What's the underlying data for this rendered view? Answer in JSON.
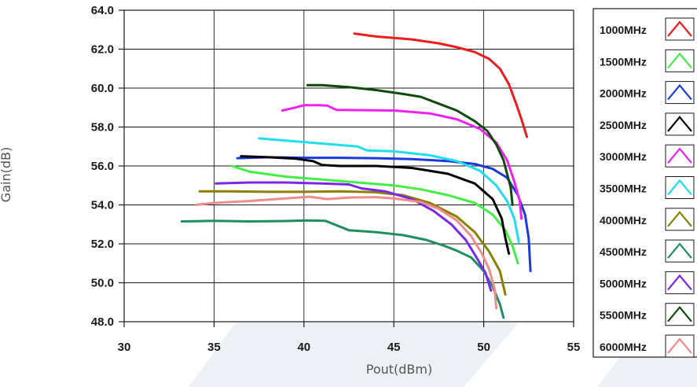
{
  "chart_data": {
    "type": "line",
    "xlabel": "Pout(dBm)",
    "ylabel": "Gain(dB)",
    "xlim": [
      30,
      55
    ],
    "ylim": [
      48,
      64
    ],
    "x_ticks": [
      "30",
      "35",
      "40",
      "45",
      "50",
      "55"
    ],
    "y_ticks": [
      "48.0",
      "50.0",
      "52.0",
      "54.0",
      "56.0",
      "58.0",
      "60.0",
      "62.0",
      "64.0"
    ],
    "grid": true,
    "legend_position": "right",
    "series": [
      {
        "name": "1000MHz",
        "color": "#ee1c1c",
        "points": [
          [
            42.8,
            62.8
          ],
          [
            44,
            62.65
          ],
          [
            46,
            62.5
          ],
          [
            47.5,
            62.3
          ],
          [
            48.5,
            62.1
          ],
          [
            49.5,
            61.85
          ],
          [
            50.3,
            61.5
          ],
          [
            50.9,
            61.0
          ],
          [
            51.4,
            60.2
          ],
          [
            51.8,
            59.2
          ],
          [
            52.1,
            58.4
          ],
          [
            52.4,
            57.5
          ]
        ]
      },
      {
        "name": "1500MHz",
        "color": "#44ee44",
        "points": [
          [
            36,
            56.0
          ],
          [
            37,
            55.7
          ],
          [
            39,
            55.45
          ],
          [
            41,
            55.3
          ],
          [
            43,
            55.15
          ],
          [
            45,
            55.0
          ],
          [
            46.5,
            54.8
          ],
          [
            48,
            54.5
          ],
          [
            49.5,
            54.1
          ],
          [
            50.5,
            53.5
          ],
          [
            51.2,
            52.7
          ],
          [
            51.6,
            51.9
          ],
          [
            51.9,
            51.0
          ]
        ]
      },
      {
        "name": "2000MHz",
        "color": "#1a3adc",
        "points": [
          [
            36.3,
            56.4
          ],
          [
            38,
            56.45
          ],
          [
            40,
            56.42
          ],
          [
            42,
            56.42
          ],
          [
            44,
            56.4
          ],
          [
            46,
            56.35
          ],
          [
            48,
            56.25
          ],
          [
            49.5,
            56.1
          ],
          [
            50.5,
            55.85
          ],
          [
            51.3,
            55.4
          ],
          [
            51.9,
            54.5
          ],
          [
            52.3,
            53.5
          ],
          [
            52.5,
            52.3
          ],
          [
            52.6,
            50.6
          ]
        ]
      },
      {
        "name": "2500MHz",
        "color": "#000000",
        "points": [
          [
            36.5,
            56.5
          ],
          [
            38,
            56.45
          ],
          [
            39.5,
            56.38
          ],
          [
            40.5,
            56.25
          ],
          [
            41,
            56.05
          ],
          [
            42,
            56.0
          ],
          [
            44,
            56.0
          ],
          [
            46,
            55.9
          ],
          [
            48,
            55.6
          ],
          [
            49.5,
            55.1
          ],
          [
            50.5,
            54.3
          ],
          [
            51,
            53.3
          ],
          [
            51.2,
            52.3
          ],
          [
            51.4,
            51.5
          ]
        ]
      },
      {
        "name": "3000MHz",
        "color": "#ee22ee",
        "points": [
          [
            38.8,
            58.85
          ],
          [
            39.5,
            59.0
          ],
          [
            40,
            59.12
          ],
          [
            40.8,
            59.12
          ],
          [
            41.3,
            59.1
          ],
          [
            41.8,
            58.88
          ],
          [
            43,
            58.87
          ],
          [
            45,
            58.85
          ],
          [
            47,
            58.7
          ],
          [
            48.5,
            58.4
          ],
          [
            49.8,
            57.9
          ],
          [
            50.7,
            57.2
          ],
          [
            51.3,
            56.3
          ],
          [
            51.7,
            55.2
          ],
          [
            52,
            54.2
          ],
          [
            52.1,
            53.3
          ]
        ]
      },
      {
        "name": "3500MHz",
        "color": "#22ddee",
        "points": [
          [
            37.5,
            57.42
          ],
          [
            39,
            57.3
          ],
          [
            41,
            57.15
          ],
          [
            43,
            57.0
          ],
          [
            43.5,
            56.8
          ],
          [
            45,
            56.75
          ],
          [
            47,
            56.55
          ],
          [
            48.5,
            56.25
          ],
          [
            49.8,
            55.75
          ],
          [
            50.7,
            55.0
          ],
          [
            51.3,
            54.2
          ],
          [
            51.7,
            53.3
          ],
          [
            51.95,
            52.1
          ]
        ]
      },
      {
        "name": "4000MHz",
        "color": "#8b8000",
        "points": [
          [
            34.2,
            54.7
          ],
          [
            36,
            54.7
          ],
          [
            38,
            54.67
          ],
          [
            40,
            54.67
          ],
          [
            42,
            54.7
          ],
          [
            44,
            54.65
          ],
          [
            45.5,
            54.5
          ],
          [
            47,
            54.1
          ],
          [
            48.5,
            53.4
          ],
          [
            49.5,
            52.6
          ],
          [
            50.3,
            51.6
          ],
          [
            50.9,
            50.6
          ],
          [
            51.2,
            49.4
          ]
        ]
      },
      {
        "name": "4500MHz",
        "color": "#1e9060",
        "points": [
          [
            33.2,
            53.15
          ],
          [
            35,
            53.18
          ],
          [
            37,
            53.15
          ],
          [
            39,
            53.17
          ],
          [
            40.2,
            53.2
          ],
          [
            41.2,
            53.18
          ],
          [
            42.5,
            52.7
          ],
          [
            44,
            52.6
          ],
          [
            45.5,
            52.45
          ],
          [
            46.8,
            52.2
          ],
          [
            47.8,
            51.9
          ],
          [
            48.5,
            51.65
          ],
          [
            49.3,
            51.3
          ],
          [
            50,
            50.6
          ],
          [
            50.5,
            49.8
          ],
          [
            50.9,
            48.9
          ],
          [
            51.1,
            48.2
          ]
        ]
      },
      {
        "name": "5000MHz",
        "color": "#7a28e8",
        "points": [
          [
            35.1,
            55.1
          ],
          [
            37,
            55.15
          ],
          [
            39,
            55.15
          ],
          [
            41,
            55.1
          ],
          [
            42.5,
            55.05
          ],
          [
            43.2,
            54.85
          ],
          [
            44.5,
            54.7
          ],
          [
            46,
            54.3
          ],
          [
            47.2,
            53.7
          ],
          [
            48.2,
            53.0
          ],
          [
            49,
            52.2
          ],
          [
            49.6,
            51.3
          ],
          [
            50.1,
            50.5
          ],
          [
            50.4,
            49.6
          ]
        ]
      },
      {
        "name": "5500MHz",
        "color": "#0e4a0e",
        "points": [
          [
            40.2,
            60.15
          ],
          [
            41,
            60.15
          ],
          [
            42.5,
            60.05
          ],
          [
            44,
            59.9
          ],
          [
            45.5,
            59.7
          ],
          [
            46.5,
            59.55
          ],
          [
            47.5,
            59.2
          ],
          [
            48.5,
            58.85
          ],
          [
            49.5,
            58.3
          ],
          [
            50.2,
            57.8
          ],
          [
            50.7,
            57.1
          ],
          [
            51.1,
            56.3
          ],
          [
            51.3,
            55.6
          ],
          [
            51.5,
            54.9
          ],
          [
            51.6,
            54.0
          ]
        ]
      },
      {
        "name": "6000MHz",
        "color": "#f08c8c",
        "points": [
          [
            34,
            54.0
          ],
          [
            35,
            54.1
          ],
          [
            37,
            54.2
          ],
          [
            39,
            54.33
          ],
          [
            40.3,
            54.42
          ],
          [
            41.3,
            54.3
          ],
          [
            42.5,
            54.38
          ],
          [
            44,
            54.4
          ],
          [
            45,
            54.33
          ],
          [
            46.5,
            54.15
          ],
          [
            47.5,
            53.8
          ],
          [
            48.5,
            53.2
          ],
          [
            49.3,
            52.4
          ],
          [
            49.9,
            51.5
          ],
          [
            50.3,
            50.7
          ],
          [
            50.6,
            49.7
          ],
          [
            50.7,
            48.7
          ]
        ]
      }
    ]
  }
}
